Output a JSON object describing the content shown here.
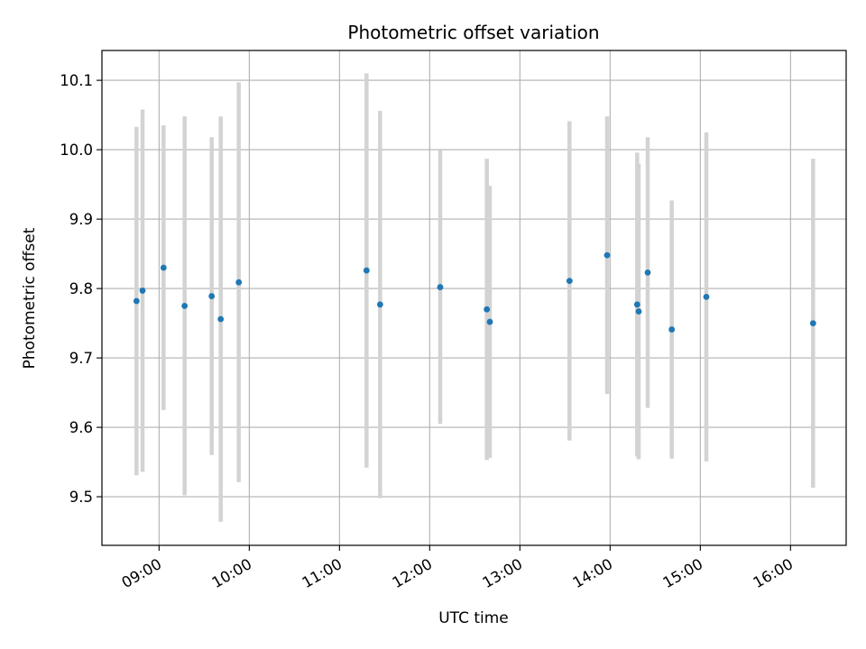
{
  "chart_data": {
    "type": "scatter",
    "title": "Photometric offset variation",
    "xlabel": "UTC time",
    "ylabel": "Photometric offset",
    "x_axis": {
      "kind": "time",
      "range": [
        "08:22",
        "16:37"
      ],
      "ticks": [
        "09:00",
        "10:00",
        "11:00",
        "12:00",
        "13:00",
        "14:00",
        "15:00",
        "16:00"
      ],
      "tick_rotation_deg": 30
    },
    "y_axis": {
      "range": [
        9.43,
        10.143
      ],
      "ticks": [
        "9.5",
        "9.6",
        "9.7",
        "9.8",
        "9.9",
        "10.0",
        "10.1"
      ]
    },
    "grid": true,
    "colors": {
      "point": "#1f77b4",
      "errorbar": "#d3d3d3",
      "grid": "#b0b0b0"
    },
    "points": [
      {
        "x": "08:45",
        "y": 9.782,
        "err": 0.251
      },
      {
        "x": "08:49",
        "y": 9.797,
        "err": 0.261
      },
      {
        "x": "09:03",
        "y": 9.83,
        "err": 0.205
      },
      {
        "x": "09:17",
        "y": 9.775,
        "err": 0.273
      },
      {
        "x": "09:35",
        "y": 9.789,
        "err": 0.229
      },
      {
        "x": "09:41",
        "y": 9.756,
        "err": 0.292
      },
      {
        "x": "09:53",
        "y": 9.809,
        "err": 0.288
      },
      {
        "x": "11:18",
        "y": 9.826,
        "err": 0.284
      },
      {
        "x": "11:27",
        "y": 9.777,
        "err": 0.279
      },
      {
        "x": "12:07",
        "y": 9.802,
        "err": 0.197
      },
      {
        "x": "12:38",
        "y": 9.77,
        "err": 0.217
      },
      {
        "x": "12:40",
        "y": 9.752,
        "err": 0.196
      },
      {
        "x": "13:33",
        "y": 9.811,
        "err": 0.23
      },
      {
        "x": "13:58",
        "y": 9.848,
        "err": 0.2
      },
      {
        "x": "14:18",
        "y": 9.777,
        "err": 0.219
      },
      {
        "x": "14:19",
        "y": 9.767,
        "err": 0.213
      },
      {
        "x": "14:25",
        "y": 9.823,
        "err": 0.195
      },
      {
        "x": "14:41",
        "y": 9.741,
        "err": 0.186
      },
      {
        "x": "15:04",
        "y": 9.788,
        "err": 0.237
      },
      {
        "x": "16:15",
        "y": 9.75,
        "err": 0.237
      }
    ]
  }
}
